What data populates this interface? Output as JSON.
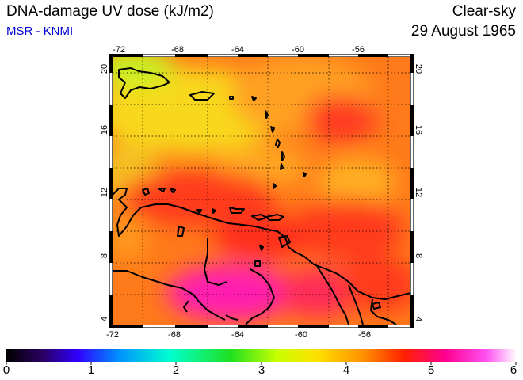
{
  "header": {
    "title": "DNA-damage UV dose (kJ/m2)",
    "source": "MSR - KNMI",
    "sky": "Clear-sky",
    "date": "29 August 1965"
  },
  "map": {
    "lon_labels": [
      "-72",
      "-68",
      "-64",
      "-60",
      "-56"
    ],
    "lat_labels": [
      "20",
      "16",
      "12",
      "8",
      "4"
    ],
    "lon_range": [
      -72,
      -52
    ],
    "lat_range": [
      3.5,
      20.5
    ]
  },
  "colorbar": {
    "labels": [
      "0",
      "1",
      "2",
      "3",
      "4",
      "5",
      "6"
    ],
    "range": [
      0,
      6
    ]
  },
  "colors": {
    "title_blue": "#0000d0",
    "field_yellow": "#f4e20a",
    "field_orange": "#ff9a1a",
    "field_red": "#ff3a1a",
    "field_magenta": "#ff14c0",
    "land_green": "#c8f020"
  }
}
